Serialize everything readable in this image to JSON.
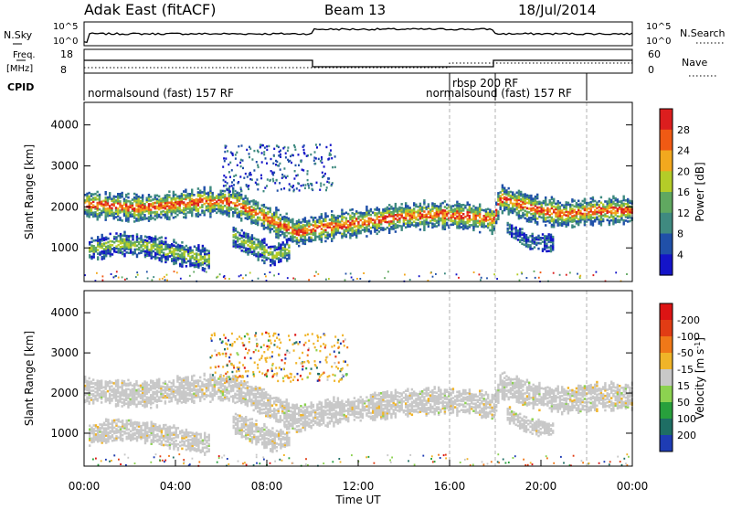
{
  "header": {
    "station": "Adak East (fitACF)",
    "beam": "Beam 13",
    "date": "18/Jul/2014"
  },
  "strips": {
    "nsky_label": "N.Sky",
    "nsearch_label": "N.Search",
    "nsky_ticks": [
      "10^5",
      "10^0"
    ],
    "nsearch_ticks": [
      "10^5",
      "10^0"
    ],
    "freq_label": "Freq.",
    "freq_unit": "[MHz]",
    "freq_ticks": [
      "18",
      "8"
    ],
    "nave_label": "Nave",
    "nave_ticks": [
      "60",
      "0"
    ],
    "cpid_label": "CPID",
    "cpid_segments": [
      "normalsound (fast) 157 RF",
      "rbsp 200 RF",
      "normalsound (fast) 157 RF"
    ]
  },
  "chart_data": [
    {
      "type": "heatmap",
      "name": "power",
      "ylabel": "Slant Range [km]",
      "ylim": [
        180,
        4550
      ],
      "yticks": [
        1000,
        2000,
        3000,
        4000
      ],
      "xlim": [
        0,
        24
      ],
      "colorbar_label": "Power [dB]",
      "colorbar_ticks": [
        4,
        8,
        12,
        16,
        20,
        24,
        28
      ],
      "colorbar_colors": [
        "#1414c8",
        "#2050a8",
        "#3f8a80",
        "#60a860",
        "#b4cc28",
        "#f2a81e",
        "#f05a14",
        "#dc1e1e"
      ],
      "bands": [
        {
          "t": [
            0.0,
            2.5,
            5.0,
            6.5,
            8.0,
            9.3,
            10.0,
            12.0,
            14.0,
            15.5,
            17.0,
            17.9,
            18.2,
            19.5,
            21.0,
            22.5,
            24.0
          ],
          "r": [
            2100,
            2000,
            2150,
            2150,
            1750,
            1400,
            1500,
            1650,
            1800,
            1850,
            1800,
            1700,
            2250,
            2000,
            1850,
            1950,
            1950
          ],
          "level": "high"
        },
        {
          "t": [
            0.2,
            1.5,
            3.0,
            4.5,
            5.5
          ],
          "r": [
            1000,
            1150,
            1050,
            850,
            750
          ],
          "level": "med"
        },
        {
          "t": [
            6.5,
            7.5,
            8.3,
            9.0
          ],
          "r": [
            1300,
            1050,
            850,
            1000
          ],
          "level": "med"
        },
        {
          "t": [
            18.5,
            19.5,
            20.5
          ],
          "r": [
            1500,
            1200,
            1150
          ],
          "level": "low"
        }
      ]
    },
    {
      "type": "heatmap",
      "name": "velocity",
      "ylabel": "Slant Range [km]",
      "ylim": [
        180,
        4550
      ],
      "yticks": [
        1000,
        2000,
        3000,
        4000
      ],
      "xlim": [
        0,
        24
      ],
      "xticks": [
        "00:00",
        "04:00",
        "08:00",
        "12:00",
        "16:00",
        "20:00",
        "00:00"
      ],
      "xlabel": "Time UT",
      "colorbar_label": "Velocity [m s",
      "colorbar_sup": "-1",
      "colorbar_close": "]",
      "colorbar_ticks": [
        "200",
        "100",
        "50",
        "15",
        "-15",
        "-50",
        "-100",
        "-200"
      ],
      "colorbar_colors": [
        "#1e3cb4",
        "#1e6e64",
        "#28a03c",
        "#8cd250",
        "#c8c8c8",
        "#f0b428",
        "#f07818",
        "#e13c14",
        "#dc1414"
      ],
      "band_color": "#c8c8c8"
    }
  ],
  "colors": {
    "ground": "#cccccc",
    "dashed": "#b0b0b0"
  }
}
